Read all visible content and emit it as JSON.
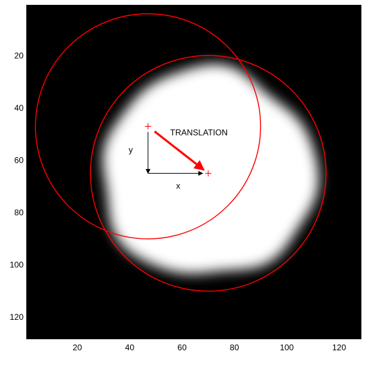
{
  "figure": {
    "annotation": "TRANSLATION",
    "x_arrow_label": "x",
    "y_arrow_label": "y",
    "x_ticks": [
      "20",
      "40",
      "60",
      "80",
      "100",
      "120"
    ],
    "y_ticks": [
      "20",
      "40",
      "60",
      "80",
      "100",
      "120"
    ],
    "x_range": [
      0.5,
      128.5
    ],
    "y_range": [
      0.5,
      128.5
    ],
    "y_direction": "top-down",
    "colors": {
      "background": "#000000",
      "blob": "#ffffff",
      "overlay": "#ff0000",
      "axis_arrows": "#000000"
    },
    "shapes": {
      "original_circle": {
        "center": [
          47,
          47
        ],
        "radius": 43
      },
      "translated_circle": {
        "center": [
          70,
          65
        ],
        "radius": 45
      },
      "translation_arrow": {
        "from": [
          47,
          47
        ],
        "to": [
          70,
          65
        ]
      },
      "blob": {
        "center": [
          70,
          65
        ],
        "radius": 41
      }
    }
  }
}
